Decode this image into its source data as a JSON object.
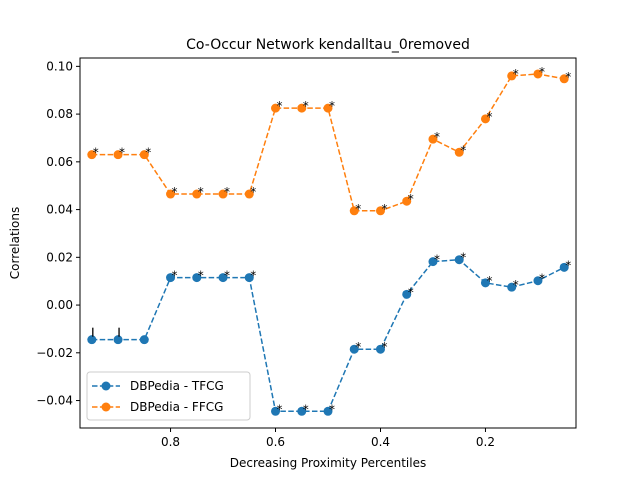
{
  "chart_data": {
    "type": "line",
    "title": "Co-Occur Network kendalltau_0removed",
    "xlabel": "Decreasing Proximity Percentiles",
    "ylabel": "Correlations",
    "x_inverted": true,
    "xlim": [
      0.9725,
      0.0275
    ],
    "ylim": [
      -0.0515,
      0.1035
    ],
    "xticks": [
      0.8,
      0.6,
      0.4,
      0.2
    ],
    "xtick_labels": [
      "0.8",
      "0.6",
      "0.4",
      "0.2"
    ],
    "yticks": [
      -0.04,
      -0.02,
      0.0,
      0.02,
      0.04,
      0.06,
      0.08,
      0.1
    ],
    "ytick_labels": [
      "−0.04",
      "−0.02",
      "0.00",
      "0.02",
      "0.04",
      "0.06",
      "0.08",
      "0.10"
    ],
    "grid": false,
    "legend_position": "lower-left",
    "x": [
      0.95,
      0.9,
      0.85,
      0.8,
      0.75,
      0.7,
      0.65,
      0.6,
      0.55,
      0.5,
      0.45,
      0.4,
      0.35,
      0.3,
      0.25,
      0.2,
      0.15,
      0.1,
      0.05
    ],
    "series": [
      {
        "name": "DBPedia - TFCG",
        "color": "#1f77b4",
        "values": [
          -0.0145,
          -0.0145,
          -0.0145,
          0.0115,
          0.0115,
          0.0115,
          0.0115,
          -0.0445,
          -0.0445,
          -0.0445,
          -0.0185,
          -0.0185,
          0.0045,
          0.0182,
          0.019,
          0.0093,
          0.0075,
          0.0102,
          0.0158
        ],
        "marks": [
          "|",
          "|",
          "",
          "*",
          "*",
          "*",
          "*",
          "*",
          "*",
          "*",
          "*",
          "*",
          "*",
          "*",
          "*",
          "*",
          "*",
          "*",
          "*"
        ]
      },
      {
        "name": "DBPedia - FFCG",
        "color": "#ff7f0e",
        "values": [
          0.063,
          0.063,
          0.063,
          0.0465,
          0.0465,
          0.0465,
          0.0465,
          0.0825,
          0.0825,
          0.0825,
          0.0395,
          0.0395,
          0.0435,
          0.0695,
          0.064,
          0.078,
          0.096,
          0.0968,
          0.0948
        ],
        "marks": [
          "*",
          "*",
          "*",
          "*",
          "*",
          "*",
          "*",
          "*",
          "*",
          "*",
          "*",
          "*",
          "*",
          "*",
          "*",
          "*",
          "*",
          "*",
          "*"
        ]
      }
    ]
  }
}
